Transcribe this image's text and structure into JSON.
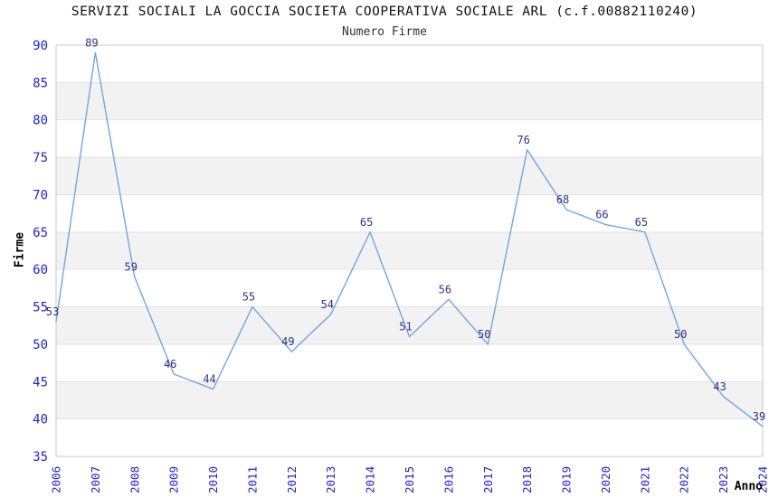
{
  "page": {
    "background": "#ffffff"
  },
  "chart_data": {
    "type": "line",
    "title": "SERVIZI SOCIALI LA GOCCIA SOCIETA COOPERATIVA SOCIALE ARL (c.f.00882110240)",
    "subtitle": "Numero Firme",
    "xlabel": "Anno",
    "ylabel": "Firme",
    "categories": [
      "2006",
      "2007",
      "2008",
      "2009",
      "2010",
      "2011",
      "2012",
      "2013",
      "2014",
      "2015",
      "2016",
      "2017",
      "2018",
      "2019",
      "2020",
      "2021",
      "2022",
      "2023",
      "2024"
    ],
    "values": [
      53,
      89,
      59,
      46,
      44,
      55,
      49,
      54,
      65,
      51,
      56,
      50,
      76,
      68,
      66,
      65,
      50,
      43,
      39
    ],
    "ylim": [
      35,
      90
    ],
    "ytick_step": 5,
    "grid": "horizontal-bands-alternating",
    "legend": "none",
    "data_labels_visible": true,
    "x_tick_rotation_deg": 90,
    "colors": {
      "line": "#73a6de",
      "tick_labels": "#2222dd",
      "data_labels": "#333388",
      "band_fill": "#f2f2f2",
      "gridline": "#e2e2e2",
      "plot_border": "#cacaca",
      "title": "#111111",
      "subtitle": "#333333",
      "axis_titles": "#000000"
    }
  }
}
